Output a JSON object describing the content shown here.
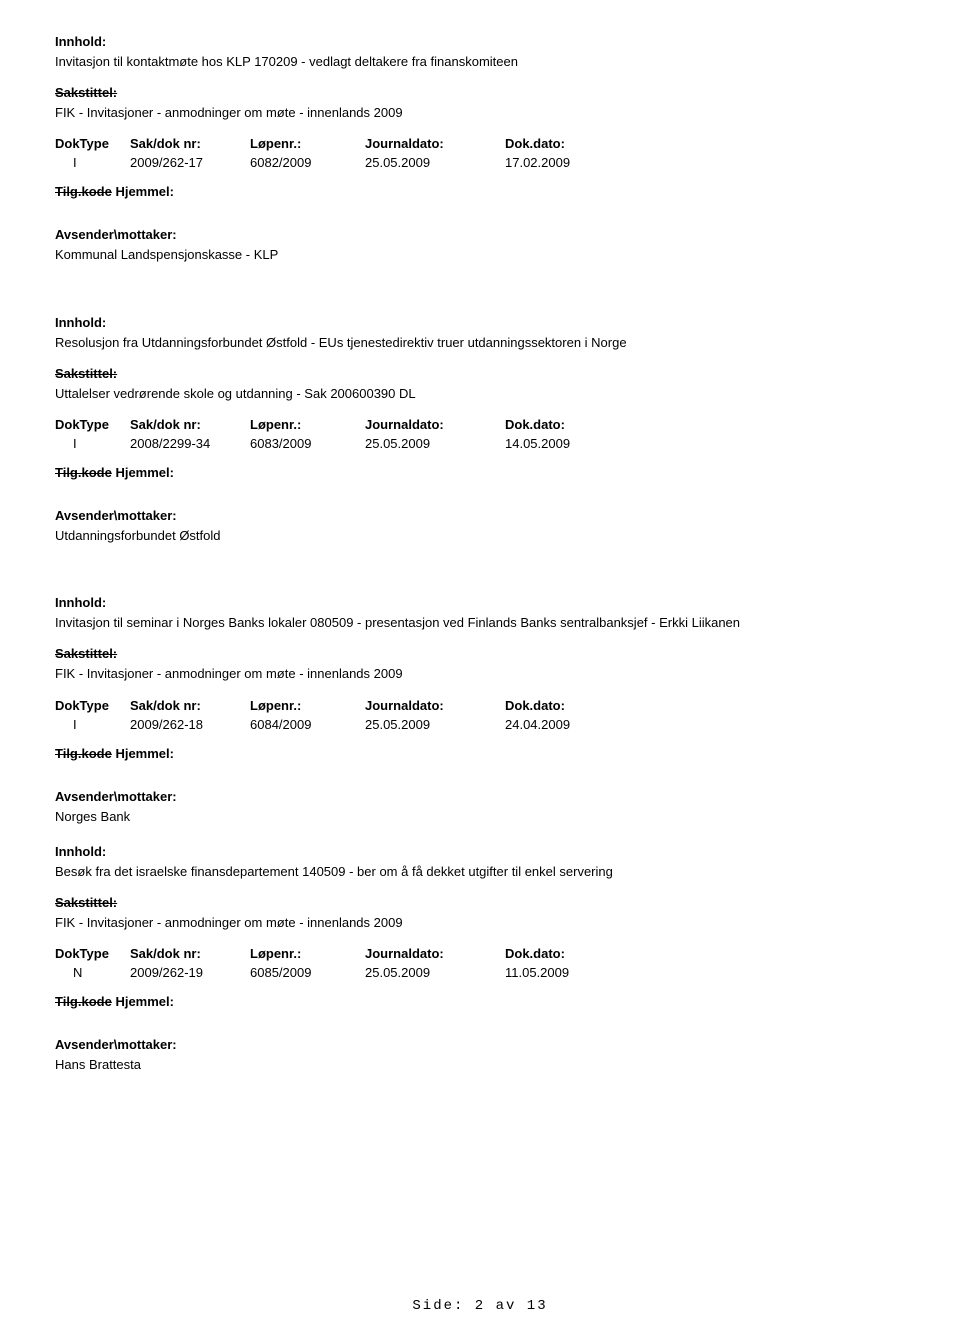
{
  "labels": {
    "innhold": "Innhold:",
    "sakstittel": "Sakstittel:",
    "doktype": "DokType",
    "saknr": "Sak/dok nr:",
    "lopenr": "Løpenr.:",
    "journaldato": "Journaldato:",
    "dokdato": "Dok.dato:",
    "tilgkode": "Tilg.kode",
    "hjemmel": "Hjemmel:",
    "avsender": "Avsender\\mottaker:"
  },
  "records": [
    {
      "innhold": "Invitasjon til kontaktmøte hos KLP 170209 - vedlagt deltakere fra finanskomiteen",
      "sakstittel": "FIK - Invitasjoner - anmodninger om møte - innenlands 2009",
      "doktype": "I",
      "saknr": "2009/262-17",
      "lopenr": "6082/2009",
      "journaldato": "25.05.2009",
      "dokdato": "17.02.2009",
      "avsender": "Kommunal Landspensjonskasse - KLP"
    },
    {
      "innhold": "Resolusjon fra Utdanningsforbundet Østfold - EUs tjenestedirektiv truer utdanningssektoren i Norge",
      "sakstittel": "Uttalelser vedrørende skole og utdanning - Sak 200600390 DL",
      "doktype": "I",
      "saknr": "2008/2299-34",
      "lopenr": "6083/2009",
      "journaldato": "25.05.2009",
      "dokdato": "14.05.2009",
      "avsender": "Utdanningsforbundet Østfold"
    },
    {
      "innhold": "Invitasjon til seminar i Norges Banks lokaler 080509 - presentasjon ved  Finlands Banks sentralbanksjef - Erkki Liikanen",
      "sakstittel": "FIK - Invitasjoner - anmodninger om møte - innenlands 2009",
      "doktype": "I",
      "saknr": "2009/262-18",
      "lopenr": "6084/2009",
      "journaldato": "25.05.2009",
      "dokdato": "24.04.2009",
      "avsender": "Norges Bank"
    },
    {
      "innhold": "Besøk fra det israelske finansdepartement 140509 - ber om å få dekket utgifter til enkel servering",
      "sakstittel": "FIK - Invitasjoner - anmodninger om møte - innenlands 2009",
      "doktype": "N",
      "saknr": "2009/262-19",
      "lopenr": "6085/2009",
      "journaldato": "25.05.2009",
      "dokdato": "11.05.2009",
      "avsender": "Hans Brattesta"
    }
  ],
  "footer": "Side: 2 av 13"
}
